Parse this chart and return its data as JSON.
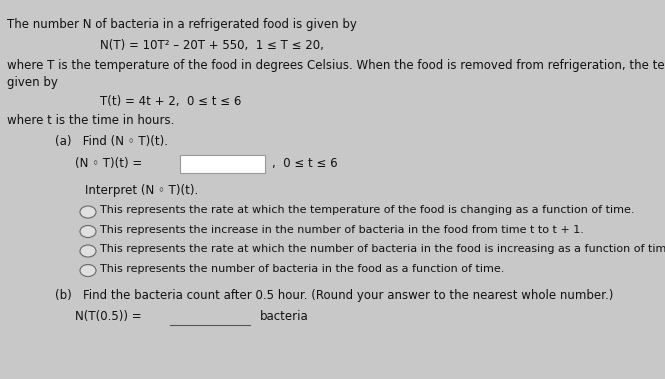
{
  "bg_color": "#c8c8c8",
  "panel_color": "#e8e8e8",
  "text_color": "#111111",
  "font_size_body": 8.5,
  "font_size_small": 8.0,
  "title_line": "The number N of bacteria in a refrigerated food is given by",
  "formula_N": "N(T) = 10T² – 20T + 550,  1 ≤ T ≤ 20,",
  "where_line": "where T is the temperature of the food in degrees Celsius. When the food is removed from refrigeration, the temperature of the fo",
  "given_by": "given by",
  "formula_T": "T(t) = 4t + 2,  0 ≤ t ≤ 6",
  "where_t": "where t is the time in hours.",
  "part_a_find": "(a)   Find (N ◦ T)(t).",
  "composite_label": "(N ◦ T)(t) = ",
  "composite_range": ",  0 ≤ t ≤ 6",
  "interpret_header": "Interpret (N ◦ T)(t).",
  "option1": "This represents the rate at which the temperature of the food is changing as a function of time.",
  "option2": "This represents the increase in the number of bacteria in the food from time t to t + 1.",
  "option3": "This represents the rate at which the number of bacteria in the food is increasing as a function of time.",
  "option4": "This represents the number of bacteria in the food as a function of time.",
  "part_b_find": "(b)   Find the bacteria count after 0.5 hour. (Round your answer to the nearest whole number.)",
  "bacteria_label": "N(T(0.5)) = ",
  "bacteria_suffix": "bacteria"
}
